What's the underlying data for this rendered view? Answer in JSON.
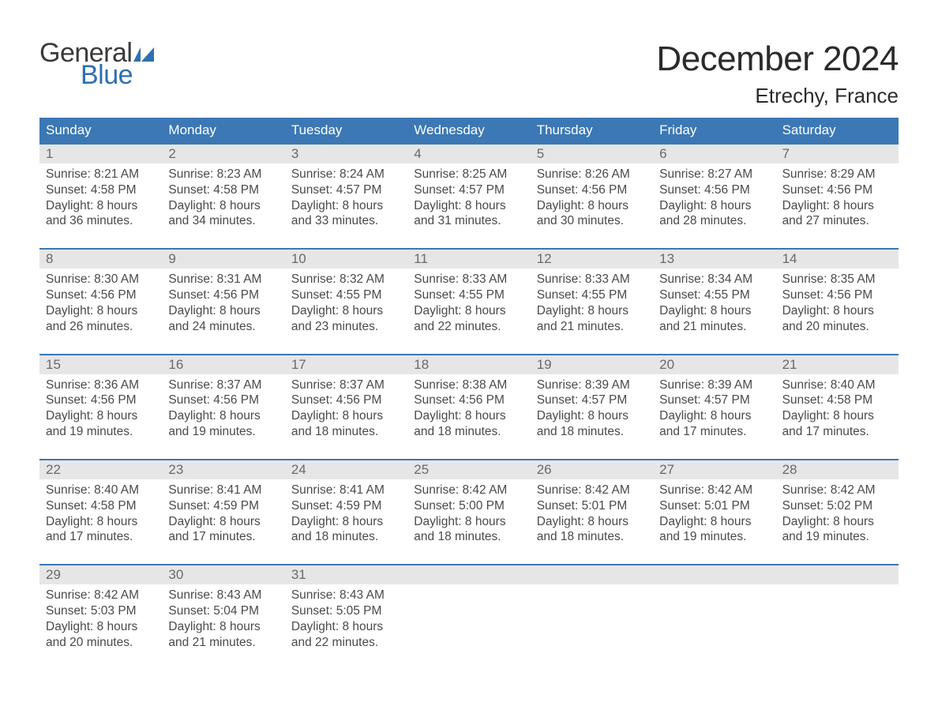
{
  "logo": {
    "text_top": "General",
    "text_bottom": "Blue",
    "flag_color": "#2f6fb0"
  },
  "title": "December 2024",
  "subtitle": "Etrechy, France",
  "colors": {
    "header_bg": "#3b78b5",
    "header_text": "#ffffff",
    "week_rule": "#3b78b5",
    "daynum_bg": "#e6e6e6",
    "daynum_text": "#6a6a6a",
    "body_text": "#4a4a4a",
    "page_bg": "#ffffff"
  },
  "day_names": [
    "Sunday",
    "Monday",
    "Tuesday",
    "Wednesday",
    "Thursday",
    "Friday",
    "Saturday"
  ],
  "weeks": [
    [
      {
        "n": "1",
        "sunrise": "Sunrise: 8:21 AM",
        "sunset": "Sunset: 4:58 PM",
        "dl1": "Daylight: 8 hours",
        "dl2": "and 36 minutes."
      },
      {
        "n": "2",
        "sunrise": "Sunrise: 8:23 AM",
        "sunset": "Sunset: 4:58 PM",
        "dl1": "Daylight: 8 hours",
        "dl2": "and 34 minutes."
      },
      {
        "n": "3",
        "sunrise": "Sunrise: 8:24 AM",
        "sunset": "Sunset: 4:57 PM",
        "dl1": "Daylight: 8 hours",
        "dl2": "and 33 minutes."
      },
      {
        "n": "4",
        "sunrise": "Sunrise: 8:25 AM",
        "sunset": "Sunset: 4:57 PM",
        "dl1": "Daylight: 8 hours",
        "dl2": "and 31 minutes."
      },
      {
        "n": "5",
        "sunrise": "Sunrise: 8:26 AM",
        "sunset": "Sunset: 4:56 PM",
        "dl1": "Daylight: 8 hours",
        "dl2": "and 30 minutes."
      },
      {
        "n": "6",
        "sunrise": "Sunrise: 8:27 AM",
        "sunset": "Sunset: 4:56 PM",
        "dl1": "Daylight: 8 hours",
        "dl2": "and 28 minutes."
      },
      {
        "n": "7",
        "sunrise": "Sunrise: 8:29 AM",
        "sunset": "Sunset: 4:56 PM",
        "dl1": "Daylight: 8 hours",
        "dl2": "and 27 minutes."
      }
    ],
    [
      {
        "n": "8",
        "sunrise": "Sunrise: 8:30 AM",
        "sunset": "Sunset: 4:56 PM",
        "dl1": "Daylight: 8 hours",
        "dl2": "and 26 minutes."
      },
      {
        "n": "9",
        "sunrise": "Sunrise: 8:31 AM",
        "sunset": "Sunset: 4:56 PM",
        "dl1": "Daylight: 8 hours",
        "dl2": "and 24 minutes."
      },
      {
        "n": "10",
        "sunrise": "Sunrise: 8:32 AM",
        "sunset": "Sunset: 4:55 PM",
        "dl1": "Daylight: 8 hours",
        "dl2": "and 23 minutes."
      },
      {
        "n": "11",
        "sunrise": "Sunrise: 8:33 AM",
        "sunset": "Sunset: 4:55 PM",
        "dl1": "Daylight: 8 hours",
        "dl2": "and 22 minutes."
      },
      {
        "n": "12",
        "sunrise": "Sunrise: 8:33 AM",
        "sunset": "Sunset: 4:55 PM",
        "dl1": "Daylight: 8 hours",
        "dl2": "and 21 minutes."
      },
      {
        "n": "13",
        "sunrise": "Sunrise: 8:34 AM",
        "sunset": "Sunset: 4:55 PM",
        "dl1": "Daylight: 8 hours",
        "dl2": "and 21 minutes."
      },
      {
        "n": "14",
        "sunrise": "Sunrise: 8:35 AM",
        "sunset": "Sunset: 4:56 PM",
        "dl1": "Daylight: 8 hours",
        "dl2": "and 20 minutes."
      }
    ],
    [
      {
        "n": "15",
        "sunrise": "Sunrise: 8:36 AM",
        "sunset": "Sunset: 4:56 PM",
        "dl1": "Daylight: 8 hours",
        "dl2": "and 19 minutes."
      },
      {
        "n": "16",
        "sunrise": "Sunrise: 8:37 AM",
        "sunset": "Sunset: 4:56 PM",
        "dl1": "Daylight: 8 hours",
        "dl2": "and 19 minutes."
      },
      {
        "n": "17",
        "sunrise": "Sunrise: 8:37 AM",
        "sunset": "Sunset: 4:56 PM",
        "dl1": "Daylight: 8 hours",
        "dl2": "and 18 minutes."
      },
      {
        "n": "18",
        "sunrise": "Sunrise: 8:38 AM",
        "sunset": "Sunset: 4:56 PM",
        "dl1": "Daylight: 8 hours",
        "dl2": "and 18 minutes."
      },
      {
        "n": "19",
        "sunrise": "Sunrise: 8:39 AM",
        "sunset": "Sunset: 4:57 PM",
        "dl1": "Daylight: 8 hours",
        "dl2": "and 18 minutes."
      },
      {
        "n": "20",
        "sunrise": "Sunrise: 8:39 AM",
        "sunset": "Sunset: 4:57 PM",
        "dl1": "Daylight: 8 hours",
        "dl2": "and 17 minutes."
      },
      {
        "n": "21",
        "sunrise": "Sunrise: 8:40 AM",
        "sunset": "Sunset: 4:58 PM",
        "dl1": "Daylight: 8 hours",
        "dl2": "and 17 minutes."
      }
    ],
    [
      {
        "n": "22",
        "sunrise": "Sunrise: 8:40 AM",
        "sunset": "Sunset: 4:58 PM",
        "dl1": "Daylight: 8 hours",
        "dl2": "and 17 minutes."
      },
      {
        "n": "23",
        "sunrise": "Sunrise: 8:41 AM",
        "sunset": "Sunset: 4:59 PM",
        "dl1": "Daylight: 8 hours",
        "dl2": "and 17 minutes."
      },
      {
        "n": "24",
        "sunrise": "Sunrise: 8:41 AM",
        "sunset": "Sunset: 4:59 PM",
        "dl1": "Daylight: 8 hours",
        "dl2": "and 18 minutes."
      },
      {
        "n": "25",
        "sunrise": "Sunrise: 8:42 AM",
        "sunset": "Sunset: 5:00 PM",
        "dl1": "Daylight: 8 hours",
        "dl2": "and 18 minutes."
      },
      {
        "n": "26",
        "sunrise": "Sunrise: 8:42 AM",
        "sunset": "Sunset: 5:01 PM",
        "dl1": "Daylight: 8 hours",
        "dl2": "and 18 minutes."
      },
      {
        "n": "27",
        "sunrise": "Sunrise: 8:42 AM",
        "sunset": "Sunset: 5:01 PM",
        "dl1": "Daylight: 8 hours",
        "dl2": "and 19 minutes."
      },
      {
        "n": "28",
        "sunrise": "Sunrise: 8:42 AM",
        "sunset": "Sunset: 5:02 PM",
        "dl1": "Daylight: 8 hours",
        "dl2": "and 19 minutes."
      }
    ],
    [
      {
        "n": "29",
        "sunrise": "Sunrise: 8:42 AM",
        "sunset": "Sunset: 5:03 PM",
        "dl1": "Daylight: 8 hours",
        "dl2": "and 20 minutes."
      },
      {
        "n": "30",
        "sunrise": "Sunrise: 8:43 AM",
        "sunset": "Sunset: 5:04 PM",
        "dl1": "Daylight: 8 hours",
        "dl2": "and 21 minutes."
      },
      {
        "n": "31",
        "sunrise": "Sunrise: 8:43 AM",
        "sunset": "Sunset: 5:05 PM",
        "dl1": "Daylight: 8 hours",
        "dl2": "and 22 minutes."
      },
      {
        "empty": true
      },
      {
        "empty": true
      },
      {
        "empty": true
      },
      {
        "empty": true
      }
    ]
  ]
}
